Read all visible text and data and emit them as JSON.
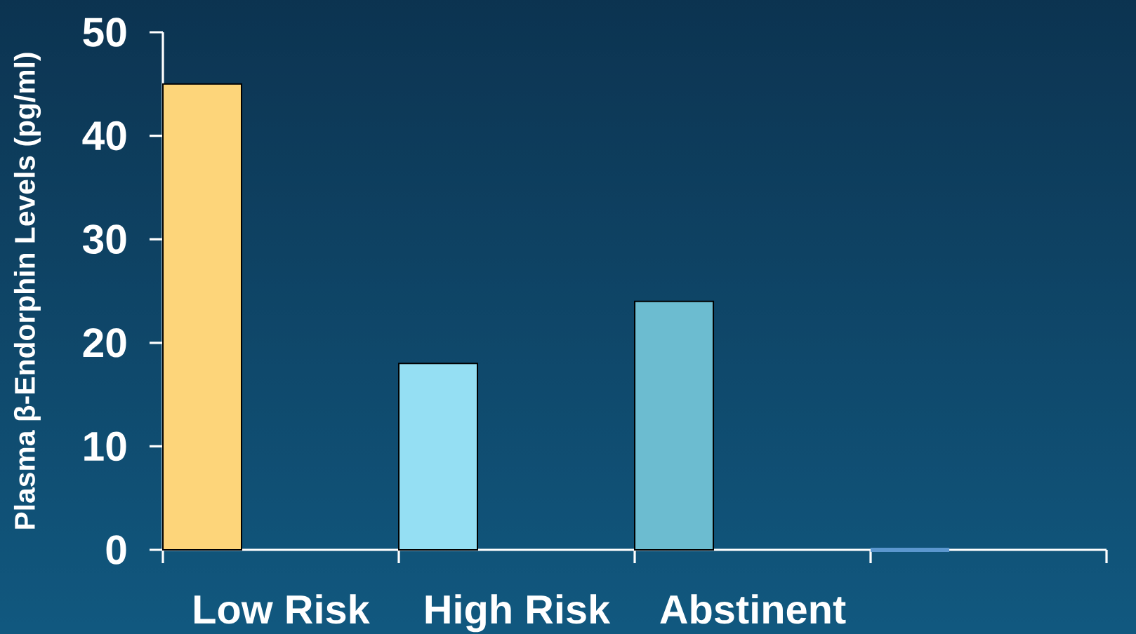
{
  "chart_data": {
    "type": "bar",
    "ylabel": "Plasma β-Endorphin Levels (pg/ml)",
    "categories": [
      "Low Risk",
      "High Risk",
      "Abstinent",
      null
    ],
    "values": [
      45,
      18,
      24,
      0
    ],
    "colors": [
      "#fdd57a",
      "#95dff3",
      "#6cbcd0",
      "#5b97cf"
    ],
    "ylim": [
      0,
      50
    ],
    "yticks": [
      0,
      10,
      20,
      30,
      40,
      50
    ]
  }
}
